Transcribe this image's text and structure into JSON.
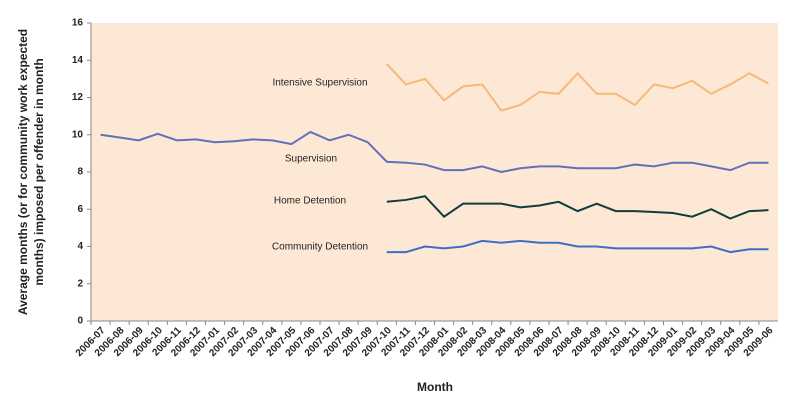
{
  "chart_data": {
    "type": "line",
    "x_label": "Month",
    "y_label": [
      "Average months (or for community work expected",
      "months) imposed per offender in month"
    ],
    "categories": [
      "2006-07",
      "2006-08",
      "2006-09",
      "2006-10",
      "2006-11",
      "2006-12",
      "2007-01",
      "2007-02",
      "2007-03",
      "2007-04",
      "2007-05",
      "2007-06",
      "2007-07",
      "2007-08",
      "2007-09",
      "2007-10",
      "2007-11",
      "2007-12",
      "2008-01",
      "2008-02",
      "2008-03",
      "2008-04",
      "2008-05",
      "2008-06",
      "2008-07",
      "2008-08",
      "2008-09",
      "2008-10",
      "2008-11",
      "2008-12",
      "2009-01",
      "2009-02",
      "2009-03",
      "2009-04",
      "2009-05",
      "2009-06"
    ],
    "series": [
      {
        "name": "Intensive Supervision",
        "color": "#f5b97a",
        "values": [
          null,
          null,
          null,
          null,
          null,
          null,
          null,
          null,
          null,
          null,
          null,
          null,
          null,
          null,
          null,
          13.8,
          12.7,
          13.0,
          11.85,
          12.6,
          12.7,
          11.3,
          11.6,
          12.3,
          12.2,
          13.3,
          12.2,
          12.2,
          11.6,
          12.7,
          12.5,
          12.9,
          12.2,
          12.7,
          13.3,
          12.75
        ]
      },
      {
        "name": "Supervision",
        "color": "#5f72b8",
        "values": [
          10.0,
          9.85,
          9.7,
          10.05,
          9.7,
          9.75,
          9.6,
          9.65,
          9.75,
          9.7,
          9.5,
          10.15,
          9.7,
          10.0,
          9.6,
          8.55,
          8.5,
          8.4,
          8.1,
          8.1,
          8.3,
          8.0,
          8.2,
          8.3,
          8.3,
          8.2,
          8.2,
          8.2,
          8.4,
          8.3,
          8.5,
          8.5,
          8.3,
          8.1,
          8.5,
          8.5
        ]
      },
      {
        "name": "Home Detention",
        "color": "#0f3d3d",
        "values": [
          null,
          null,
          null,
          null,
          null,
          null,
          null,
          null,
          null,
          null,
          null,
          null,
          null,
          null,
          null,
          6.4,
          6.5,
          6.7,
          5.6,
          6.3,
          6.3,
          6.3,
          6.1,
          6.2,
          6.4,
          5.9,
          6.3,
          5.9,
          5.9,
          5.85,
          5.8,
          5.6,
          6.0,
          5.5,
          5.9,
          5.95
        ]
      },
      {
        "name": "Community Detention",
        "color": "#3b6fc4",
        "values": [
          null,
          null,
          null,
          null,
          null,
          null,
          null,
          null,
          null,
          null,
          null,
          null,
          null,
          null,
          null,
          3.7,
          3.7,
          4.0,
          3.9,
          4.0,
          4.3,
          4.2,
          4.3,
          4.2,
          4.2,
          4.0,
          4.0,
          3.9,
          3.9,
          3.9,
          3.9,
          3.9,
          4.0,
          3.7,
          3.85,
          3.85
        ]
      }
    ],
    "ylim": [
      0,
      16
    ],
    "yticks": [
      0,
      2,
      4,
      6,
      8,
      10,
      12,
      14,
      16
    ],
    "plot_background": "#fde8d6"
  }
}
